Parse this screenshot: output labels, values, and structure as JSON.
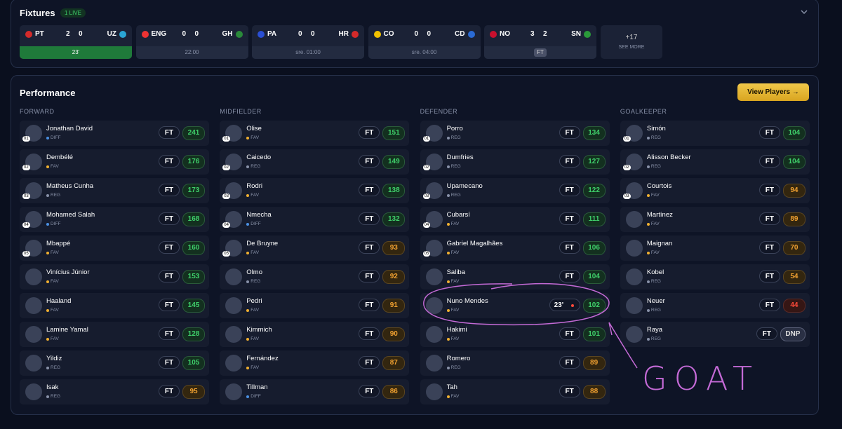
{
  "fixtures": {
    "title": "Fixtures",
    "live_label": "1 LIVE",
    "matches": [
      {
        "home": "PT",
        "home_score": 2,
        "away_score": 0,
        "away": "UZ",
        "time": "23'"
      },
      {
        "home": "ENG",
        "home_score": 0,
        "away_score": 0,
        "away": "GH",
        "time": "22:00"
      },
      {
        "home": "PA",
        "home_score": 0,
        "away_score": 0,
        "away": "HR",
        "time": "sre. 01:00"
      },
      {
        "home": "CO",
        "home_score": 0,
        "away_score": 0,
        "away": "CD",
        "time": "sre. 04:00"
      },
      {
        "home": "NO",
        "home_score": 3,
        "away_score": 2,
        "away": "SN",
        "time": "FT"
      }
    ],
    "more": {
      "count": "+17",
      "label": "SEE MORE"
    }
  },
  "performance": {
    "title": "Performance",
    "button": "View Players →",
    "columns": [
      {
        "title": "FORWARD",
        "players": [
          {
            "rank": "01",
            "name": "Jonathan David",
            "tag": "DIFF",
            "status": "FT",
            "points": 241
          },
          {
            "rank": "02",
            "name": "Dembélé",
            "tag": "FAV",
            "status": "FT",
            "points": 176
          },
          {
            "rank": "03",
            "name": "Matheus Cunha",
            "tag": "REG",
            "status": "FT",
            "points": 173
          },
          {
            "rank": "04",
            "name": "Mohamed Salah",
            "tag": "DIFF",
            "status": "FT",
            "points": 168
          },
          {
            "rank": "05",
            "name": "Mbappé",
            "tag": "FAV",
            "status": "FT",
            "points": 160
          },
          {
            "name": "Vinícius Júnior",
            "tag": "FAV",
            "status": "FT",
            "points": 153
          },
          {
            "name": "Haaland",
            "tag": "FAV",
            "status": "FT",
            "points": 145
          },
          {
            "name": "Lamine Yamal",
            "tag": "FAV",
            "status": "FT",
            "points": 128
          },
          {
            "name": "Yildiz",
            "tag": "REG",
            "status": "FT",
            "points": 105
          },
          {
            "name": "Isak",
            "tag": "REG",
            "status": "FT",
            "points": 95
          }
        ]
      },
      {
        "title": "MIDFIELDER",
        "players": [
          {
            "rank": "01",
            "name": "Olise",
            "tag": "FAV",
            "status": "FT",
            "points": 151
          },
          {
            "rank": "02",
            "name": "Caicedo",
            "tag": "REG",
            "status": "FT",
            "points": 149
          },
          {
            "rank": "03",
            "name": "Rodri",
            "tag": "FAV",
            "status": "FT",
            "points": 138
          },
          {
            "rank": "04",
            "name": "Nmecha",
            "tag": "DIFF",
            "status": "FT",
            "points": 132
          },
          {
            "rank": "05",
            "name": "De Bruyne",
            "tag": "FAV",
            "status": "FT",
            "points": 93
          },
          {
            "name": "Olmo",
            "tag": "REG",
            "status": "FT",
            "points": 92
          },
          {
            "name": "Pedri",
            "tag": "FAV",
            "status": "FT",
            "points": 91
          },
          {
            "name": "Kimmich",
            "tag": "FAV",
            "status": "FT",
            "points": 90
          },
          {
            "name": "Fernández",
            "tag": "FAV",
            "status": "FT",
            "points": 87
          },
          {
            "name": "Tillman",
            "tag": "DIFF",
            "status": "FT",
            "points": 86
          }
        ]
      },
      {
        "title": "DEFENDER",
        "players": [
          {
            "rank": "01",
            "name": "Porro",
            "tag": "REG",
            "status": "FT",
            "points": 134
          },
          {
            "rank": "02",
            "name": "Dumfries",
            "tag": "REG",
            "status": "FT",
            "points": 127
          },
          {
            "rank": "03",
            "name": "Upamecano",
            "tag": "REG",
            "status": "FT",
            "points": 122
          },
          {
            "rank": "04",
            "name": "Cubarsí",
            "tag": "FAV",
            "status": "FT",
            "points": 111
          },
          {
            "rank": "05",
            "name": "Gabriel Magalhães",
            "tag": "FAV",
            "status": "FT",
            "points": 106
          },
          {
            "name": "Saliba",
            "tag": "FAV",
            "status": "FT",
            "points": 104
          },
          {
            "name": "Nuno Mendes",
            "tag": "FAV",
            "status": "23'",
            "points": 102
          },
          {
            "name": "Hakimi",
            "tag": "FAV",
            "status": "FT",
            "points": 101
          },
          {
            "name": "Romero",
            "tag": "REG",
            "status": "FT",
            "points": 89
          },
          {
            "name": "Tah",
            "tag": "FAV",
            "status": "FT",
            "points": 88
          }
        ]
      },
      {
        "title": "GOALKEEPER",
        "players": [
          {
            "rank": "01",
            "name": "Simón",
            "tag": "REG",
            "status": "FT",
            "points": 104
          },
          {
            "rank": "02",
            "name": "Alisson Becker",
            "tag": "REG",
            "status": "FT",
            "points": 104
          },
          {
            "rank": "03",
            "name": "Courtois",
            "tag": "FAV",
            "status": "FT",
            "points": 94
          },
          {
            "name": "Martínez",
            "tag": "FAV",
            "status": "FT",
            "points": 89
          },
          {
            "name": "Maignan",
            "tag": "FAV",
            "status": "FT",
            "points": 70
          },
          {
            "name": "Kobel",
            "tag": "REG",
            "status": "FT",
            "points": 54
          },
          {
            "name": "Neuer",
            "tag": "REG",
            "status": "FT",
            "points": 44
          },
          {
            "name": "Raya",
            "tag": "REG",
            "status": "FT",
            "points": "DNP"
          }
        ]
      }
    ]
  },
  "annotation": "GOAT"
}
